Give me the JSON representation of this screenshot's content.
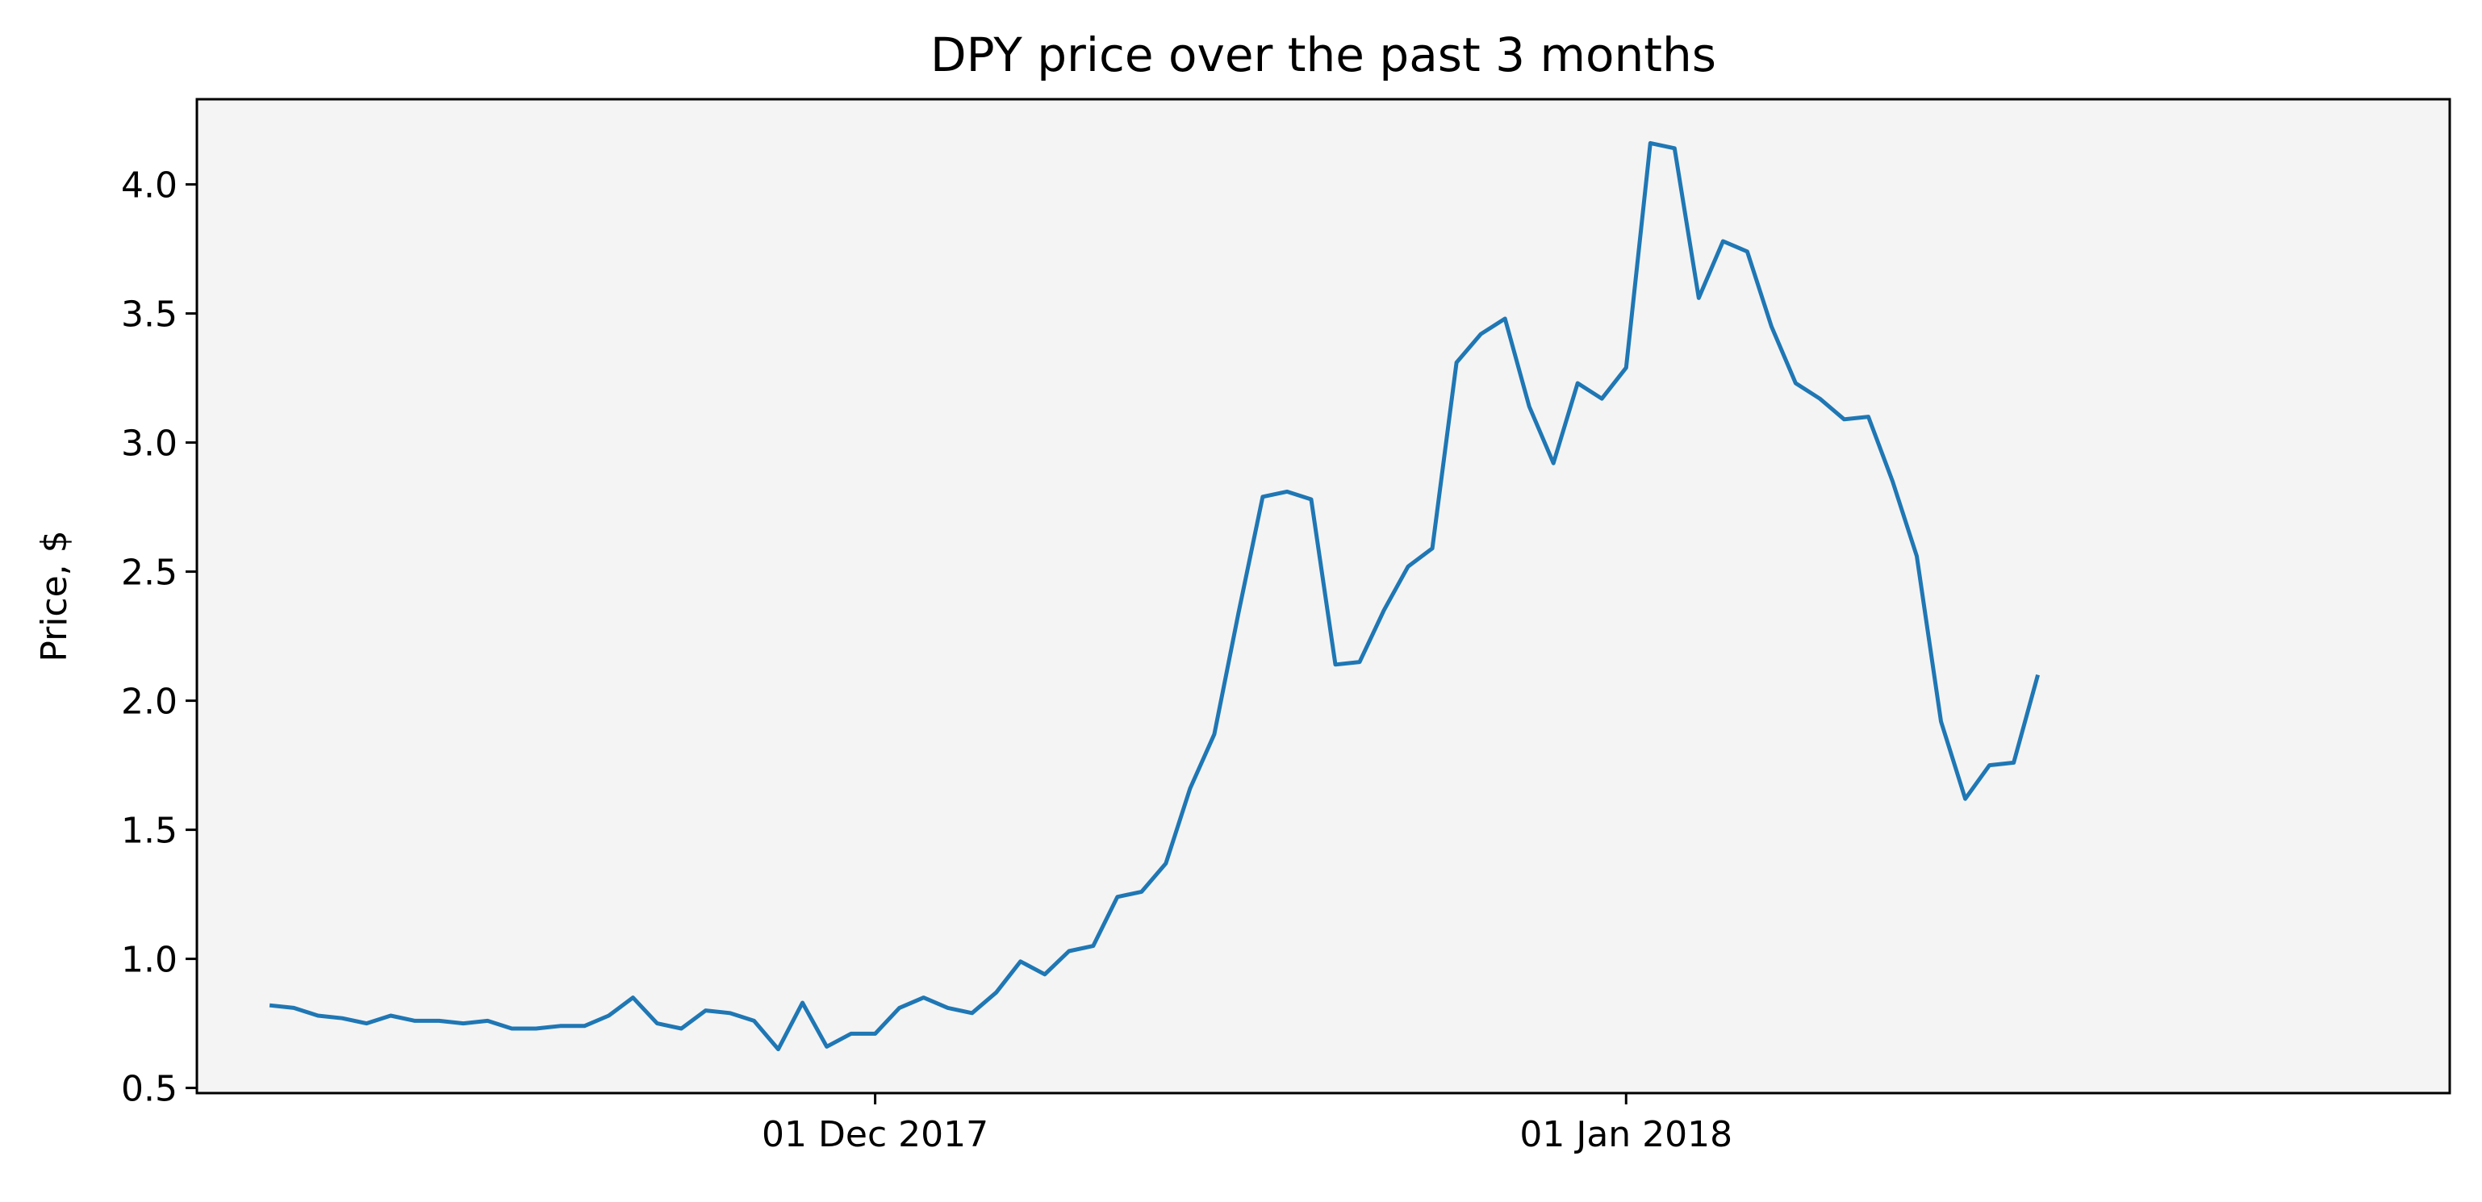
{
  "chart_data": {
    "type": "line",
    "title": "DPY price over the past 3 months",
    "xlabel": "",
    "ylabel": "Price, $",
    "x_start": "2017-11-06",
    "x_step_days": 1,
    "x_ticks": [
      {
        "date": "2017-12-01",
        "label": "01 Dec 2017"
      },
      {
        "date": "2018-01-01",
        "label": "01 Jan 2018"
      }
    ],
    "y_ticks": [
      0.5,
      1.0,
      1.5,
      2.0,
      2.5,
      3.0,
      3.5,
      4.0
    ],
    "y_tick_labels": [
      "0.5",
      "1.0",
      "1.5",
      "2.0",
      "2.5",
      "3.0",
      "3.5",
      "4.0"
    ],
    "xlim": [
      "2017-11-03",
      "2018-02-04"
    ],
    "ylim": [
      0.48,
      4.33
    ],
    "grid": false,
    "background_color": "#f4f4f4",
    "line_color": "#1f77b4",
    "series": [
      {
        "values": [
          0.82,
          0.81,
          0.78,
          0.77,
          0.75,
          0.78,
          0.76,
          0.76,
          0.75,
          0.76,
          0.73,
          0.73,
          0.74,
          0.74,
          0.78,
          0.85,
          0.75,
          0.73,
          0.8,
          0.79,
          0.76,
          0.65,
          0.83,
          0.66,
          0.71,
          0.71,
          0.81,
          0.85,
          0.81,
          0.79,
          0.87,
          0.99,
          0.94,
          1.03,
          1.05,
          1.24,
          1.26,
          1.37,
          1.66,
          1.87,
          2.34,
          2.79,
          2.81,
          2.78,
          2.14,
          2.15,
          2.35,
          2.52,
          2.59,
          3.31,
          3.42,
          3.48,
          3.14,
          2.92,
          3.23,
          3.17,
          3.29,
          4.16,
          4.14,
          3.56,
          3.78,
          3.74,
          3.45,
          3.23,
          3.17,
          3.09,
          3.1,
          2.85,
          2.56,
          1.92,
          1.62,
          1.75,
          1.76,
          2.1
        ]
      }
    ]
  }
}
